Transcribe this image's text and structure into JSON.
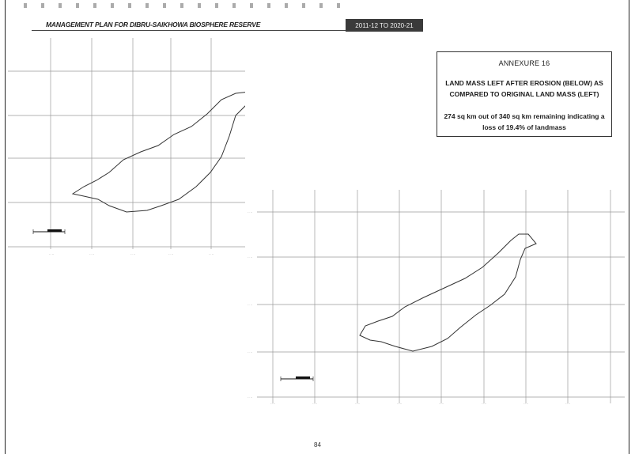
{
  "header": {
    "title": "MANAGEMENT PLAN FOR DIBRU-SAIKHOWA BIOSPHERE RESERVE",
    "period": "2011-12 TO 2020-21"
  },
  "annexure": {
    "title": "ANNEXURE 16",
    "heading": "LAND MASS LEFT AFTER EROSION (BELOW) AS COMPARED TO ORIGINAL LAND MASS (LEFT)",
    "note": "274 sq km out of 340 sq km remaining indicating a loss of 19.4% of landmass"
  },
  "page_number": "84"
}
